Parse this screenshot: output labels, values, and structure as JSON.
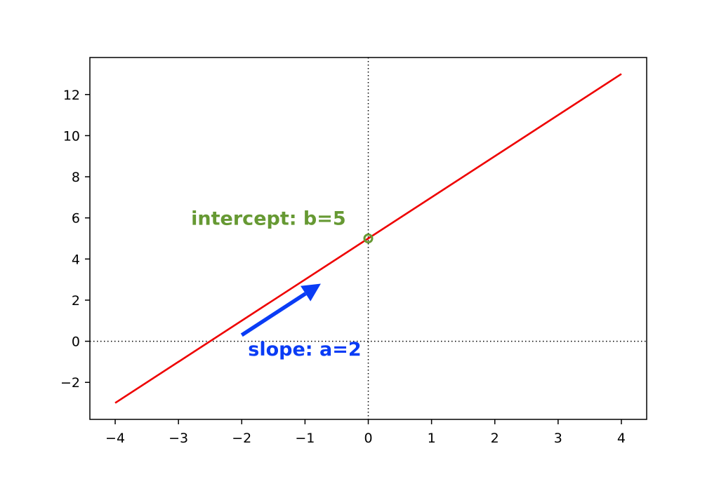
{
  "chart_data": {
    "type": "line",
    "title": "",
    "xlabel": "",
    "ylabel": "",
    "xlim": [
      -4.4,
      4.4
    ],
    "ylim": [
      -3.8,
      13.8
    ],
    "grid": false,
    "x_ticks": [
      -4,
      -3,
      -2,
      -1,
      0,
      1,
      2,
      3,
      4
    ],
    "y_ticks": [
      -2,
      0,
      2,
      4,
      6,
      8,
      10,
      12
    ],
    "x_tick_labels": [
      "−4",
      "−3",
      "−2",
      "−1",
      "0",
      "1",
      "2",
      "3",
      "4"
    ],
    "y_tick_labels": [
      "−2",
      "0",
      "2",
      "4",
      "6",
      "8",
      "10",
      "12"
    ],
    "series": [
      {
        "x": [
          -4,
          4
        ],
        "y": [
          -3,
          13
        ],
        "color": "#ee0000"
      }
    ],
    "reference_lines": [
      {
        "orientation": "vertical",
        "x": 0,
        "style": "dotted",
        "color": "#000000"
      },
      {
        "orientation": "horizontal",
        "y": 0,
        "style": "dotted",
        "color": "#000000"
      }
    ],
    "point_marker": {
      "x": 0,
      "y": 5,
      "shape": "hollow-circle",
      "color": "#669933"
    },
    "arrow": {
      "from": [
        -2,
        0.3
      ],
      "to": [
        -0.75,
        2.8
      ],
      "color": "#0a3cf5"
    },
    "annotations": [
      {
        "text": "intercept: b=5",
        "x": -2.8,
        "y": 6,
        "color": "#669933"
      },
      {
        "text": "slope: a=2",
        "x": -1.9,
        "y": -0.35,
        "color": "#0a3cf5"
      }
    ]
  }
}
